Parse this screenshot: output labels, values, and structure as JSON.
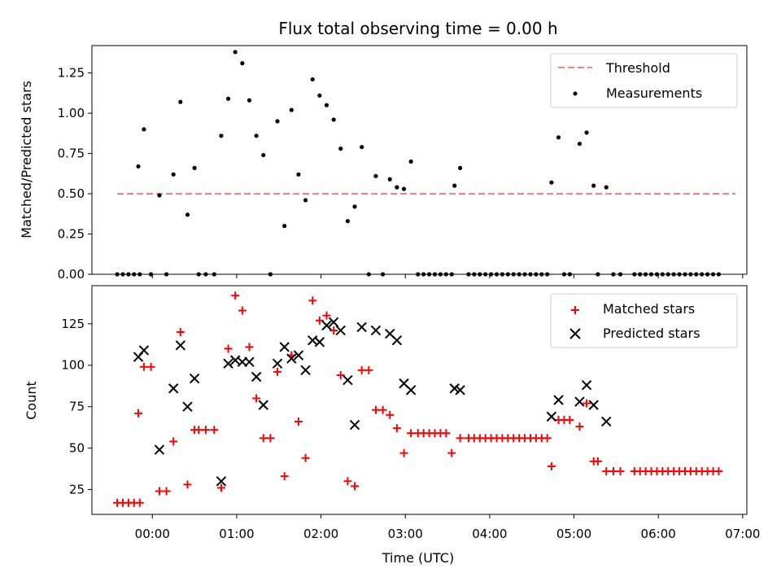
{
  "chart_data": [
    {
      "type": "scatter",
      "title": "Flux total observing time = 0.00 h",
      "xlabel": "",
      "ylabel": "Matched/Predicted stars",
      "ylim": [
        0,
        1.42
      ],
      "yticks": [
        "0.00",
        "0.25",
        "0.50",
        "0.75",
        "1.00",
        "1.25"
      ],
      "ytick_values": [
        0,
        0.25,
        0.5,
        0.75,
        1.0,
        1.25
      ],
      "legend_position": "top-right",
      "threshold": {
        "name": "Threshold",
        "y": 0.5,
        "x_range": [
          "23:35",
          "30:55"
        ],
        "color": "#ff7f7f"
      },
      "series": [
        {
          "name": "Measurements",
          "color": "#000000",
          "points": [
            [
              "23:35",
              0
            ],
            [
              "23:39",
              0
            ],
            [
              "23:43",
              0
            ],
            [
              "23:47",
              0
            ],
            [
              "23:51",
              0
            ],
            [
              "23:50",
              0.67
            ],
            [
              "23:54",
              0.9
            ],
            [
              "23:59",
              0
            ],
            [
              "24:05",
              0.49
            ],
            [
              "24:10",
              0
            ],
            [
              "24:15",
              0.62
            ],
            [
              "24:20",
              1.07
            ],
            [
              "24:25",
              0.37
            ],
            [
              "24:30",
              0.66
            ],
            [
              "24:33",
              0
            ],
            [
              "24:38",
              0
            ],
            [
              "24:44",
              0
            ],
            [
              "24:49",
              0.86
            ],
            [
              "24:54",
              1.09
            ],
            [
              "24:59",
              1.38
            ],
            [
              "25:04",
              1.31
            ],
            [
              "25:09",
              1.08
            ],
            [
              "25:14",
              0.86
            ],
            [
              "25:19",
              0.74
            ],
            [
              "25:24",
              0
            ],
            [
              "25:29",
              0.95
            ],
            [
              "25:34",
              0.3
            ],
            [
              "25:39",
              1.02
            ],
            [
              "25:44",
              0.62
            ],
            [
              "25:49",
              0.46
            ],
            [
              "25:54",
              1.21
            ],
            [
              "25:59",
              1.11
            ],
            [
              "26:04",
              1.05
            ],
            [
              "26:09",
              0.96
            ],
            [
              "26:14",
              0.78
            ],
            [
              "26:19",
              0.33
            ],
            [
              "26:24",
              0.42
            ],
            [
              "26:29",
              0.79
            ],
            [
              "26:34",
              0
            ],
            [
              "26:39",
              0.61
            ],
            [
              "26:44",
              0
            ],
            [
              "26:49",
              0.59
            ],
            [
              "26:54",
              0.54
            ],
            [
              "26:59",
              0.53
            ],
            [
              "27:04",
              0.7
            ],
            [
              "27:09",
              0
            ],
            [
              "27:13",
              0
            ],
            [
              "27:17",
              0
            ],
            [
              "27:21",
              0
            ],
            [
              "27:25",
              0
            ],
            [
              "27:29",
              0
            ],
            [
              "27:33",
              0
            ],
            [
              "27:35",
              0.55
            ],
            [
              "27:39",
              0.66
            ],
            [
              "27:45",
              0
            ],
            [
              "27:49",
              0
            ],
            [
              "27:53",
              0
            ],
            [
              "27:57",
              0
            ],
            [
              "28:01",
              0
            ],
            [
              "28:05",
              0
            ],
            [
              "28:09",
              0
            ],
            [
              "28:13",
              0
            ],
            [
              "28:17",
              0
            ],
            [
              "28:21",
              0
            ],
            [
              "28:25",
              0
            ],
            [
              "28:29",
              0
            ],
            [
              "28:33",
              0
            ],
            [
              "28:37",
              0
            ],
            [
              "28:41",
              0
            ],
            [
              "28:44",
              0.57
            ],
            [
              "28:49",
              0.85
            ],
            [
              "28:53",
              0
            ],
            [
              "28:57",
              0
            ],
            [
              "29:04",
              0.81
            ],
            [
              "29:09",
              0.88
            ],
            [
              "29:14",
              0.55
            ],
            [
              "29:17",
              0
            ],
            [
              "29:23",
              0.54
            ],
            [
              "29:28",
              0
            ],
            [
              "29:33",
              0
            ],
            [
              "29:43",
              0
            ],
            [
              "29:47",
              0
            ],
            [
              "29:51",
              0
            ],
            [
              "29:55",
              0
            ],
            [
              "29:59",
              0
            ],
            [
              "30:03",
              0
            ],
            [
              "30:07",
              0
            ],
            [
              "30:11",
              0
            ],
            [
              "30:15",
              0
            ],
            [
              "30:19",
              0
            ],
            [
              "30:23",
              0
            ],
            [
              "30:27",
              0
            ],
            [
              "30:31",
              0
            ],
            [
              "30:35",
              0
            ],
            [
              "30:39",
              0
            ],
            [
              "30:43",
              0
            ]
          ]
        }
      ]
    },
    {
      "type": "scatter",
      "title": "",
      "xlabel": "Time (UTC)",
      "ylabel": "Count",
      "ylim": [
        10,
        148
      ],
      "yticks": [
        "25",
        "50",
        "75",
        "100",
        "125"
      ],
      "ytick_values": [
        25,
        50,
        75,
        100,
        125
      ],
      "xlim": [
        "23:17",
        "31:03"
      ],
      "xticks": [
        "00:00",
        "01:00",
        "02:00",
        "03:00",
        "04:00",
        "05:00",
        "06:00",
        "07:00"
      ],
      "xtick_values": [
        "24:00",
        "25:00",
        "26:00",
        "27:00",
        "28:00",
        "29:00",
        "30:00",
        "31:00"
      ],
      "legend_position": "top-right",
      "series": [
        {
          "name": "Matched stars",
          "color": "#ff0000",
          "marker": "plus",
          "points": [
            [
              "23:35",
              17
            ],
            [
              "23:39",
              17
            ],
            [
              "23:43",
              17
            ],
            [
              "23:47",
              17
            ],
            [
              "23:51",
              17
            ],
            [
              "23:50",
              71
            ],
            [
              "23:54",
              99
            ],
            [
              "23:59",
              99
            ],
            [
              "24:05",
              24
            ],
            [
              "24:10",
              24
            ],
            [
              "24:15",
              54
            ],
            [
              "24:20",
              120
            ],
            [
              "24:25",
              28
            ],
            [
              "24:30",
              61
            ],
            [
              "24:33",
              61
            ],
            [
              "24:38",
              61
            ],
            [
              "24:44",
              61
            ],
            [
              "24:49",
              26
            ],
            [
              "24:54",
              110
            ],
            [
              "24:59",
              142
            ],
            [
              "25:04",
              133
            ],
            [
              "25:09",
              111
            ],
            [
              "25:14",
              80
            ],
            [
              "25:19",
              56
            ],
            [
              "25:24",
              56
            ],
            [
              "25:29",
              96
            ],
            [
              "25:34",
              33
            ],
            [
              "25:39",
              106
            ],
            [
              "25:44",
              66
            ],
            [
              "25:49",
              44
            ],
            [
              "25:54",
              139
            ],
            [
              "25:59",
              127
            ],
            [
              "26:04",
              130
            ],
            [
              "26:09",
              121
            ],
            [
              "26:14",
              94
            ],
            [
              "26:19",
              30
            ],
            [
              "26:24",
              27
            ],
            [
              "26:29",
              97
            ],
            [
              "26:34",
              97
            ],
            [
              "26:39",
              73
            ],
            [
              "26:44",
              73
            ],
            [
              "26:49",
              70
            ],
            [
              "26:54",
              62
            ],
            [
              "26:59",
              47
            ],
            [
              "27:04",
              59
            ],
            [
              "27:09",
              59
            ],
            [
              "27:13",
              59
            ],
            [
              "27:17",
              59
            ],
            [
              "27:21",
              59
            ],
            [
              "27:25",
              59
            ],
            [
              "27:29",
              59
            ],
            [
              "27:33",
              47
            ],
            [
              "27:39",
              56
            ],
            [
              "27:45",
              56
            ],
            [
              "27:49",
              56
            ],
            [
              "27:53",
              56
            ],
            [
              "27:57",
              56
            ],
            [
              "28:01",
              56
            ],
            [
              "28:05",
              56
            ],
            [
              "28:09",
              56
            ],
            [
              "28:13",
              56
            ],
            [
              "28:17",
              56
            ],
            [
              "28:21",
              56
            ],
            [
              "28:25",
              56
            ],
            [
              "28:29",
              56
            ],
            [
              "28:33",
              56
            ],
            [
              "28:37",
              56
            ],
            [
              "28:41",
              56
            ],
            [
              "28:44",
              39
            ],
            [
              "28:49",
              67
            ],
            [
              "28:53",
              67
            ],
            [
              "28:57",
              67
            ],
            [
              "29:04",
              63
            ],
            [
              "29:09",
              77
            ],
            [
              "29:14",
              42
            ],
            [
              "29:17",
              42
            ],
            [
              "29:23",
              36
            ],
            [
              "29:28",
              36
            ],
            [
              "29:33",
              36
            ],
            [
              "29:43",
              36
            ],
            [
              "29:47",
              36
            ],
            [
              "29:51",
              36
            ],
            [
              "29:55",
              36
            ],
            [
              "29:59",
              36
            ],
            [
              "30:03",
              36
            ],
            [
              "30:07",
              36
            ],
            [
              "30:11",
              36
            ],
            [
              "30:15",
              36
            ],
            [
              "30:19",
              36
            ],
            [
              "30:23",
              36
            ],
            [
              "30:27",
              36
            ],
            [
              "30:31",
              36
            ],
            [
              "30:35",
              36
            ],
            [
              "30:39",
              36
            ],
            [
              "30:43",
              36
            ]
          ]
        },
        {
          "name": "Predicted stars",
          "color": "#000000",
          "marker": "x",
          "points": [
            [
              "23:50",
              105
            ],
            [
              "23:54",
              109
            ],
            [
              "24:05",
              49
            ],
            [
              "24:15",
              86
            ],
            [
              "24:20",
              112
            ],
            [
              "24:25",
              75
            ],
            [
              "24:30",
              92
            ],
            [
              "24:49",
              30
            ],
            [
              "24:54",
              101
            ],
            [
              "24:59",
              103
            ],
            [
              "25:04",
              102
            ],
            [
              "25:09",
              102
            ],
            [
              "25:14",
              93
            ],
            [
              "25:19",
              76
            ],
            [
              "25:29",
              101
            ],
            [
              "25:34",
              111
            ],
            [
              "25:39",
              104
            ],
            [
              "25:44",
              106
            ],
            [
              "25:49",
              97
            ],
            [
              "25:54",
              115
            ],
            [
              "25:59",
              114
            ],
            [
              "26:04",
              124
            ],
            [
              "26:09",
              126
            ],
            [
              "26:14",
              121
            ],
            [
              "26:19",
              91
            ],
            [
              "26:24",
              64
            ],
            [
              "26:29",
              123
            ],
            [
              "26:39",
              121
            ],
            [
              "26:49",
              119
            ],
            [
              "26:54",
              115
            ],
            [
              "26:59",
              89
            ],
            [
              "27:04",
              85
            ],
            [
              "27:35",
              86
            ],
            [
              "27:39",
              85
            ],
            [
              "28:44",
              69
            ],
            [
              "28:49",
              79
            ],
            [
              "29:04",
              78
            ],
            [
              "29:09",
              88
            ],
            [
              "29:14",
              76
            ],
            [
              "29:23",
              66
            ]
          ]
        }
      ]
    }
  ]
}
